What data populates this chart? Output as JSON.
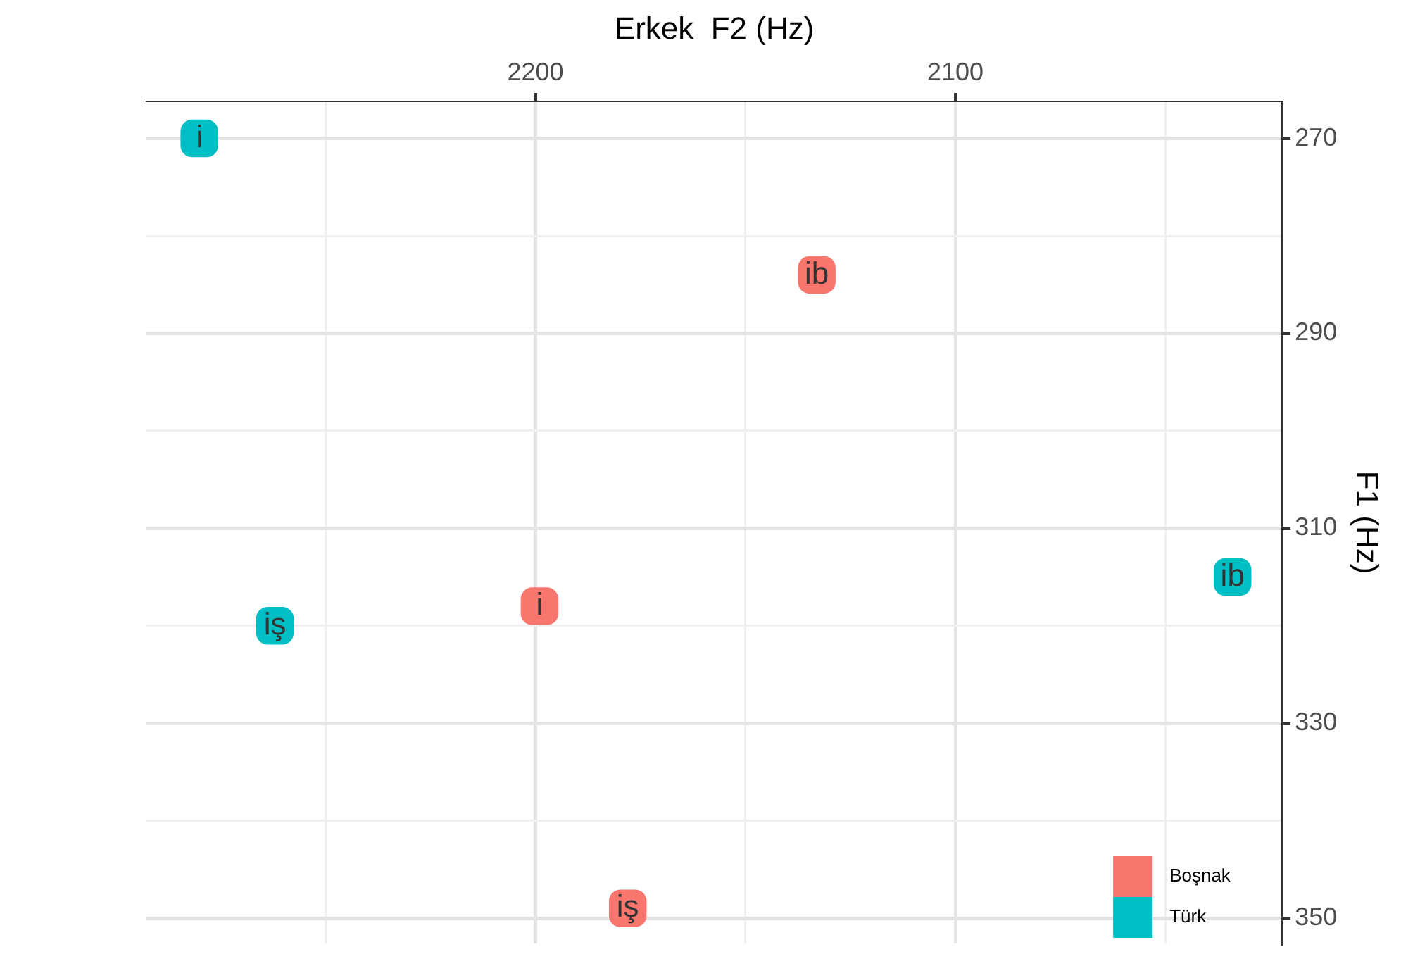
{
  "chart_data": {
    "type": "scatter",
    "xlabel": "Erkek  F2 (Hz)",
    "ylabel": "F1 (Hz)",
    "series": [
      {
        "name": "Boşnak",
        "color": "#f8766d",
        "x": [
          2133,
          2199,
          2178
        ],
        "values": [
          284,
          318,
          349
        ]
      },
      {
        "name": "Türk",
        "color": "#00bfc4",
        "x": [
          2280,
          2034,
          2262
        ],
        "values": [
          270,
          315,
          320
        ]
      }
    ],
    "annotations": [
      {
        "text": "ib",
        "x": 2133,
        "y": 284
      },
      {
        "text": "i",
        "x": 2199,
        "y": 318
      },
      {
        "text": "iş",
        "x": 2178,
        "y": 349
      },
      {
        "text": "i",
        "x": 2280,
        "y": 270
      },
      {
        "text": "ib",
        "x": 2034,
        "y": 315
      },
      {
        "text": "iş",
        "x": 2262,
        "y": 320
      }
    ],
    "xlim": [
      2292.6,
      2022.2
    ],
    "xticks": [
      {
        "value": 2250,
        "label": null
      },
      2200,
      {
        "value": 2150,
        "label": null
      },
      2100,
      {
        "value": 2050,
        "label": null
      }
    ],
    "ylim": [
      352.6,
      266.2
    ],
    "yticks": [
      270,
      {
        "value": 280,
        "label": null
      },
      290,
      {
        "value": 300,
        "label": null
      },
      310,
      {
        "value": 320,
        "label": null
      },
      330,
      {
        "value": 340,
        "label": null
      },
      350
    ],
    "grid": true,
    "legend": "bottom right",
    "marker": "square"
  }
}
